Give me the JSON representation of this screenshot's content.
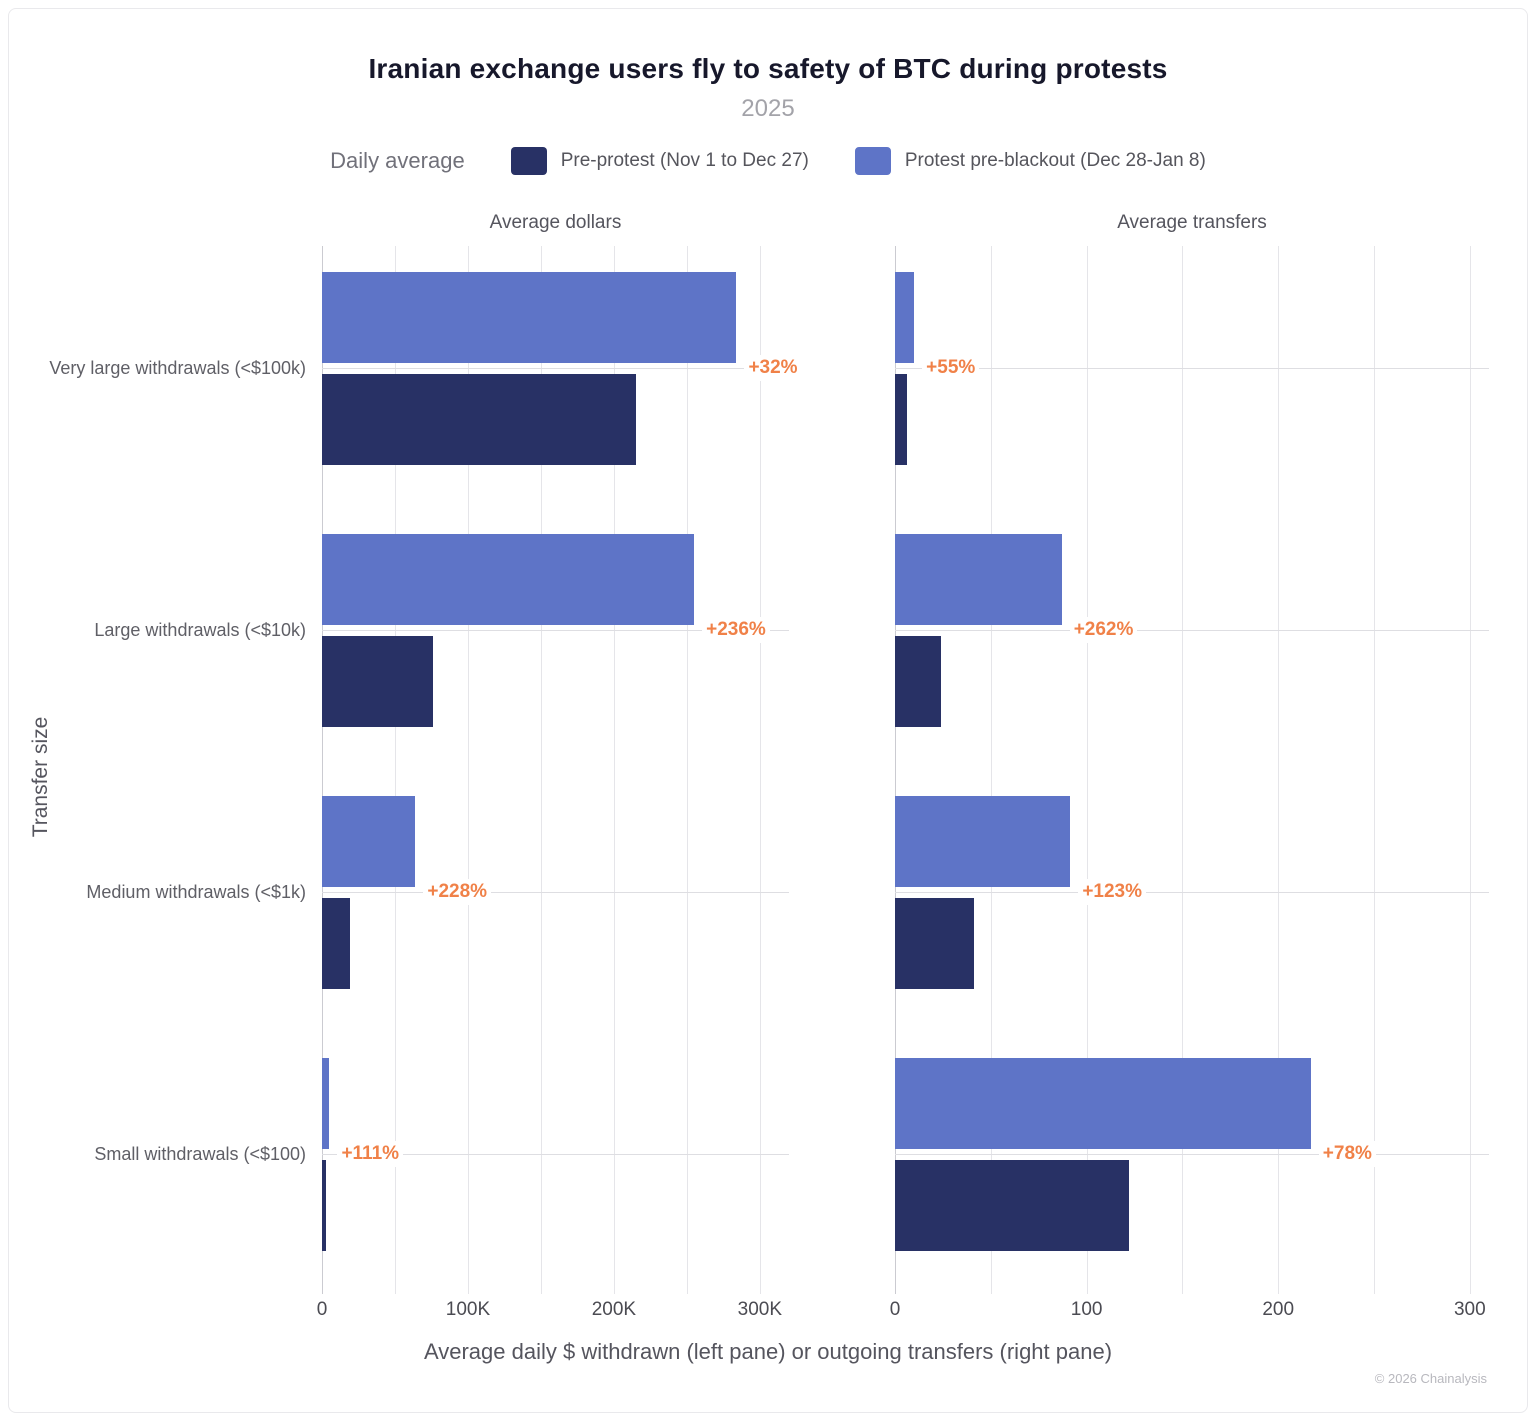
{
  "title": "Iranian exchange users fly to safety of BTC during protests",
  "subtitle": "2025",
  "legend": {
    "label": "Daily average",
    "series": [
      {
        "name": "Pre-protest (Nov 1 to Dec 27)",
        "color": "#283165"
      },
      {
        "name": "Protest pre-blackout (Dec 28-Jan 8)",
        "color": "#5e74c7"
      }
    ]
  },
  "ylabel": "Transfer size",
  "xlabel": "Average daily $ withdrawn (left pane) or outgoing transfers (right pane)",
  "copyright": "© 2026 Chainalysis",
  "chart_data": {
    "type": "bar",
    "orientation": "horizontal",
    "grid": true,
    "legend_position": "top",
    "annotation_color": "#f08148",
    "categories": [
      "Very large withdrawals (<$100k)",
      "Large withdrawals (<$10k)",
      "Medium withdrawals (<$1k)",
      "Small withdrawals (<$100)"
    ],
    "panes": [
      {
        "title": "Average dollars",
        "xmax": 320000,
        "grid_step": 50000,
        "grid_max": 300000,
        "ticks": [
          {
            "value": 0,
            "label": "0"
          },
          {
            "value": 100000,
            "label": "100K"
          },
          {
            "value": 200000,
            "label": "200K"
          },
          {
            "value": 300000,
            "label": "300K"
          }
        ],
        "series": [
          {
            "name": "Pre-protest (Nov 1 to Dec 27)",
            "values": [
              215000,
              76000,
              19500,
              2400
            ]
          },
          {
            "name": "Protest pre-blackout (Dec 28-Jan 8)",
            "values": [
              284000,
              255000,
              64000,
              5100
            ]
          }
        ],
        "pct_labels": [
          "+32%",
          "+236%",
          "+228%",
          "+111%"
        ]
      },
      {
        "title": "Average transfers",
        "xmax": 310,
        "grid_step": 50,
        "grid_max": 300,
        "ticks": [
          {
            "value": 0,
            "label": "0"
          },
          {
            "value": 100,
            "label": "100"
          },
          {
            "value": 200,
            "label": "200"
          },
          {
            "value": 300,
            "label": "300"
          }
        ],
        "series": [
          {
            "name": "Pre-protest (Nov 1 to Dec 27)",
            "values": [
              6.5,
              24,
              41,
              122
            ]
          },
          {
            "name": "Protest pre-blackout (Dec 28-Jan 8)",
            "values": [
              10,
              87,
              91.5,
              217
            ]
          }
        ],
        "pct_labels": [
          "+55%",
          "+262%",
          "+123%",
          "+78%"
        ]
      }
    ]
  }
}
